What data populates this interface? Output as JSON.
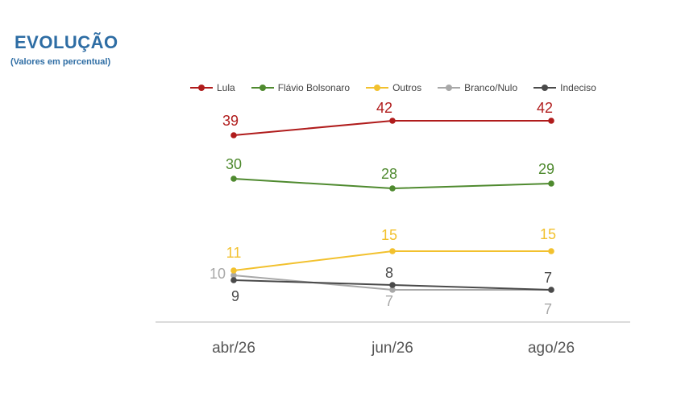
{
  "header": {
    "title": "EVOLUÇÃO",
    "subtitle": "(Valores em percentual)"
  },
  "chart_data": {
    "type": "line",
    "categories": [
      "abr/26",
      "jun/26",
      "ago/26"
    ],
    "series": [
      {
        "name": "Lula",
        "color": "#b01c1c",
        "values": [
          39,
          42,
          42
        ]
      },
      {
        "name": "Flávio Bolsonaro",
        "color": "#4f8a2f",
        "values": [
          30,
          28,
          29
        ]
      },
      {
        "name": "Outros",
        "color": "#f2c12e",
        "values": [
          11,
          15,
          15
        ]
      },
      {
        "name": "Branco/Nulo",
        "color": "#a8a8a8",
        "values": [
          10,
          7,
          7
        ]
      },
      {
        "name": "Indeciso",
        "color": "#4a4a4a",
        "values": [
          9,
          8,
          7
        ]
      }
    ],
    "legend": "top",
    "grid": false,
    "ylim": [
      0,
      45
    ]
  }
}
